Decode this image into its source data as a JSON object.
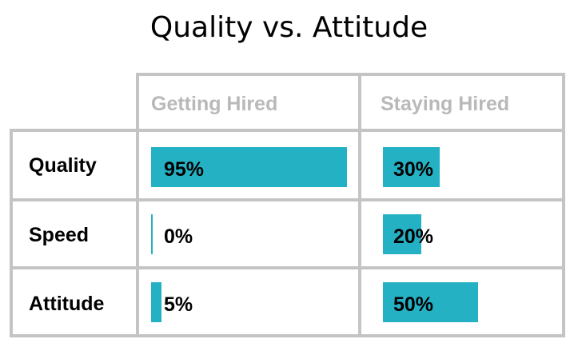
{
  "chart_data": {
    "type": "table",
    "title": "Quality vs. Attitude",
    "columns": [
      "Getting Hired",
      "Staying Hired"
    ],
    "rows": [
      {
        "label": "Quality",
        "values": [
          "95%",
          "30%"
        ],
        "fractions": [
          0.95,
          0.3
        ]
      },
      {
        "label": "Speed",
        "values": [
          "0%",
          "20%"
        ],
        "fractions": [
          0.0,
          0.2
        ]
      },
      {
        "label": "Attitude",
        "values": [
          "5%",
          "50%"
        ],
        "fractions": [
          0.05,
          0.5
        ]
      }
    ],
    "bar_color": "#25b1c4",
    "header_color": "#b9b9b9",
    "grid_color": "#c4c4c4"
  }
}
